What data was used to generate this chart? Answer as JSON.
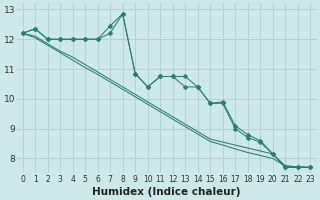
{
  "xlabel": "Humidex (Indice chaleur)",
  "bg_color": "#cce8e8",
  "grid_color": "#aacccc",
  "line_color": "#2e7d6e",
  "xlim": [
    -0.5,
    23.5
  ],
  "ylim": [
    7.5,
    13.2
  ],
  "yticks": [
    8,
    9,
    10,
    11,
    12,
    13
  ],
  "xticks": [
    0,
    1,
    2,
    3,
    4,
    5,
    6,
    7,
    8,
    9,
    10,
    11,
    12,
    13,
    14,
    15,
    16,
    17,
    18,
    19,
    20,
    21,
    22,
    23
  ],
  "line_wavy": [
    12.2,
    12.35,
    12.0,
    12.0,
    12.0,
    12.0,
    12.0,
    12.45,
    12.85,
    10.85,
    10.4,
    10.75,
    10.75,
    10.75,
    10.4,
    9.85,
    9.9,
    9.1,
    8.8,
    8.6,
    8.15,
    7.7,
    7.7,
    7.7
  ],
  "line_wavy2": [
    12.2,
    12.35,
    12.0,
    12.0,
    12.0,
    12.0,
    12.0,
    12.2,
    12.85,
    10.85,
    10.4,
    10.75,
    10.75,
    10.4,
    10.4,
    9.85,
    9.85,
    9.0,
    8.7,
    8.55,
    8.15,
    7.7,
    7.7,
    7.7
  ],
  "line_diag1": [
    12.2,
    12.1,
    11.85,
    11.6,
    11.4,
    11.15,
    10.9,
    10.65,
    10.4,
    10.15,
    9.9,
    9.65,
    9.4,
    9.15,
    8.9,
    8.65,
    8.55,
    8.45,
    8.35,
    8.25,
    8.15,
    7.75,
    7.72,
    7.7
  ],
  "line_diag2": [
    12.2,
    12.05,
    11.8,
    11.55,
    11.3,
    11.05,
    10.82,
    10.57,
    10.32,
    10.07,
    9.82,
    9.57,
    9.32,
    9.07,
    8.82,
    8.57,
    8.45,
    8.32,
    8.2,
    8.1,
    8.0,
    7.75,
    7.72,
    7.7
  ],
  "markersize": 2.5
}
